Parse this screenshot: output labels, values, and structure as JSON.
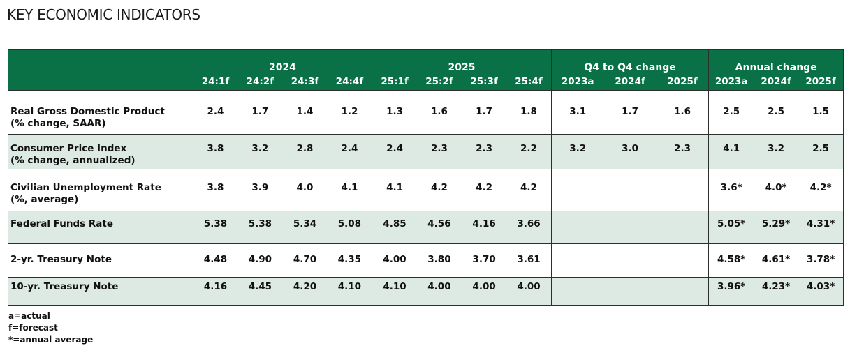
{
  "page": {
    "title": "KEY ECONOMIC INDICATORS"
  },
  "table": {
    "groups": [
      {
        "label": "2024",
        "columns": [
          "24:1f",
          "24:2f",
          "24:3f",
          "24:4f"
        ]
      },
      {
        "label": "2025",
        "columns": [
          "25:1f",
          "25:2f",
          "25:3f",
          "25:4f"
        ]
      },
      {
        "label": "Q4 to Q4 change",
        "columns": [
          "2023a",
          "2024f",
          "2025f"
        ]
      },
      {
        "label": "Annual change",
        "columns": [
          "2023a",
          "2024f",
          "2025f"
        ]
      }
    ],
    "rows": [
      {
        "label1": "Real Gross Domestic Product",
        "label2": "(% change, SAAR)",
        "values": [
          "2.4",
          "1.7",
          "1.4",
          "1.2",
          "1.3",
          "1.6",
          "1.7",
          "1.8",
          "3.1",
          "1.7",
          "1.6",
          "2.5",
          "2.5",
          "1.5"
        ]
      },
      {
        "label1": "Consumer Price Index",
        "label2": "(% change, annualized)",
        "values": [
          "3.8",
          "3.2",
          "2.8",
          "2.4",
          "2.4",
          "2.3",
          "2.3",
          "2.2",
          "3.2",
          "3.0",
          "2.3",
          "4.1",
          "3.2",
          "2.5"
        ]
      },
      {
        "label1": "Civilian Unemployment Rate",
        "label2": "(%, average)",
        "values": [
          "3.8",
          "3.9",
          "4.0",
          "4.1",
          "4.1",
          "4.2",
          "4.2",
          "4.2",
          "",
          "",
          "",
          "3.6*",
          "4.0*",
          "4.2*"
        ]
      },
      {
        "label1": "Federal Funds Rate",
        "label2": "",
        "values": [
          "5.38",
          "5.38",
          "5.34",
          "5.08",
          "4.85",
          "4.56",
          "4.16",
          "3.66",
          "",
          "",
          "",
          "5.05*",
          "5.29*",
          "4.31*"
        ]
      },
      {
        "label1": "2-yr. Treasury Note",
        "label2": "",
        "values": [
          "4.48",
          "4.90",
          "4.70",
          "4.35",
          "4.00",
          "3.80",
          "3.70",
          "3.61",
          "",
          "",
          "",
          "4.58*",
          "4.61*",
          "3.78*"
        ]
      },
      {
        "label1": "10-yr. Treasury Note",
        "label2": "",
        "values": [
          "4.16",
          "4.45",
          "4.20",
          "4.10",
          "4.10",
          "4.00",
          "4.00",
          "4.00",
          "",
          "",
          "",
          "3.96*",
          "4.23*",
          "4.03*"
        ]
      }
    ]
  },
  "notes": [
    "a=actual",
    "f=forecast",
    "*=annual average"
  ],
  "colors": {
    "header_bg": "#0a7045",
    "header_text": "#ffffff",
    "alt_row_bg": "#dde9e3",
    "border": "#2e2e2e"
  }
}
